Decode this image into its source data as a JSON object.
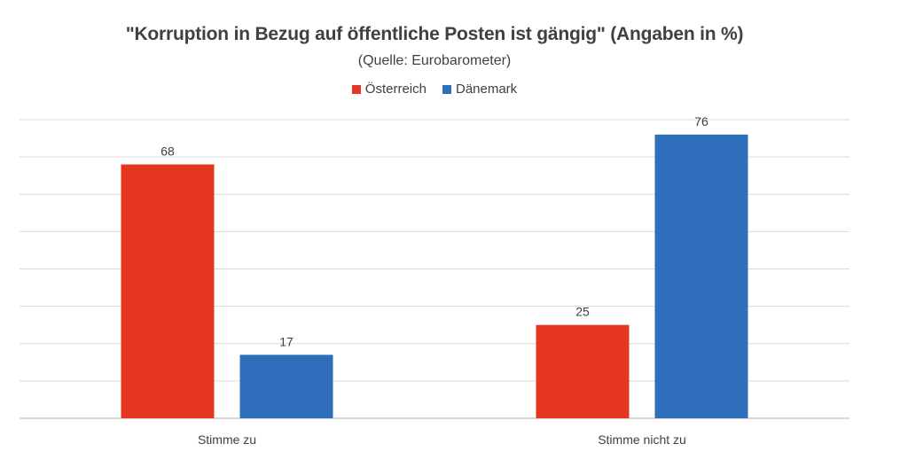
{
  "chart_data": {
    "type": "bar",
    "title": "\"Korruption in Bezug auf öffentliche Posten ist gängig\" (Angaben in %)",
    "subtitle": "(Quelle: Eurobarometer)",
    "categories": [
      "Stimme zu",
      "Stimme nicht zu"
    ],
    "series": [
      {
        "name": "Österreich",
        "color": "#E5361F",
        "values": [
          68,
          25
        ]
      },
      {
        "name": "Dänemark",
        "color": "#2F6EBA",
        "values": [
          17,
          76
        ]
      }
    ],
    "xlabel": "",
    "ylabel": "",
    "ylim": [
      0,
      80
    ],
    "grid": true,
    "legend_position": "top",
    "data_labels": true
  },
  "colors": {
    "gridline": "#d9d9d9",
    "axis": "#bfbfbf",
    "text": "#404040"
  }
}
